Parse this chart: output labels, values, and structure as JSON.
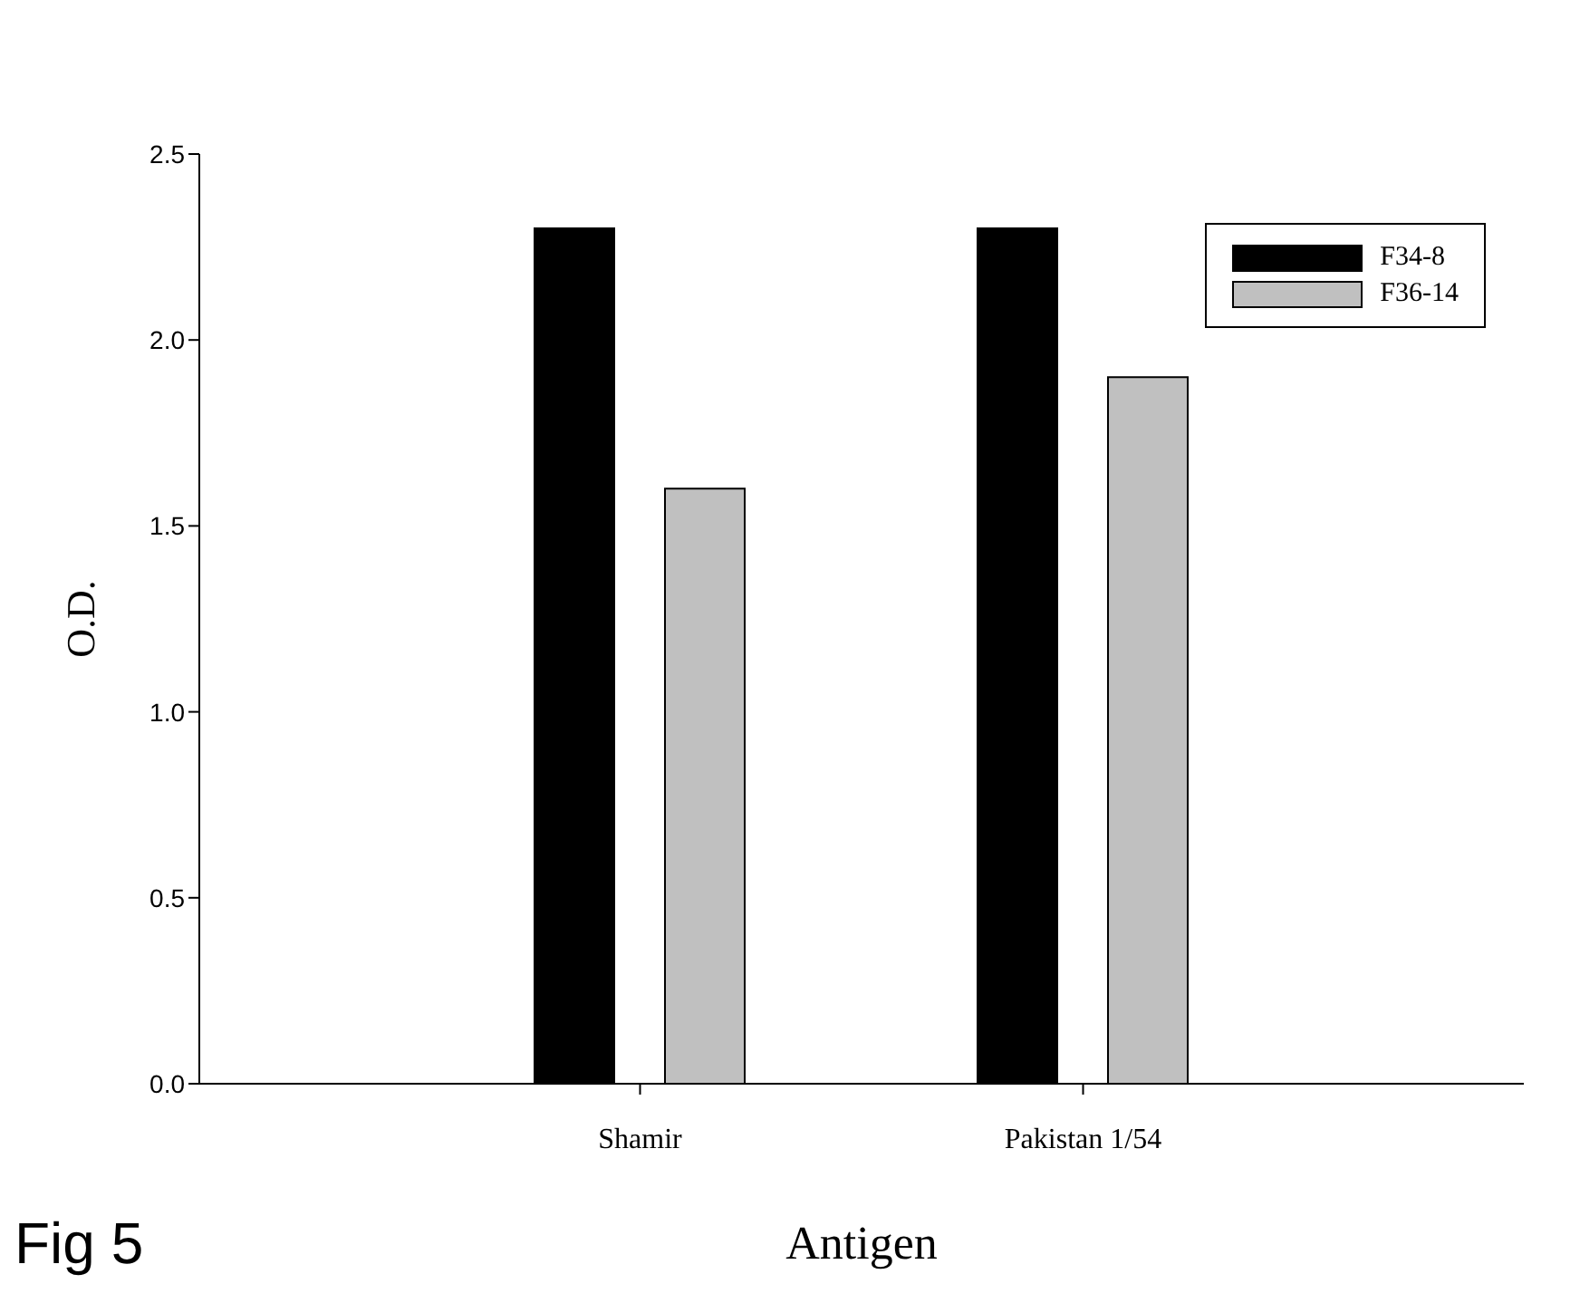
{
  "chart_data": {
    "type": "bar",
    "xlabel": "Antigen",
    "ylabel": "O.D.",
    "categories": [
      "Shamir",
      "Pakistan 1/54"
    ],
    "series": [
      {
        "name": "F34-8",
        "color": "#000000",
        "values": [
          2.3,
          2.3
        ]
      },
      {
        "name": "F36-14",
        "color": "#c0c0c0",
        "values": [
          1.6,
          1.9
        ]
      }
    ],
    "ylim": [
      0,
      2.5
    ],
    "yticks": [
      {
        "value": 0,
        "label": "0.0"
      },
      {
        "value": 0.5,
        "label": "0.5"
      },
      {
        "value": 1,
        "label": "1.0"
      },
      {
        "value": 1.5,
        "label": "1.5"
      },
      {
        "value": 2,
        "label": "2.0"
      },
      {
        "value": 2.5,
        "label": "2.5"
      }
    ],
    "grid": false,
    "legend": "top right",
    "annotations": [
      "Fig 5"
    ]
  }
}
